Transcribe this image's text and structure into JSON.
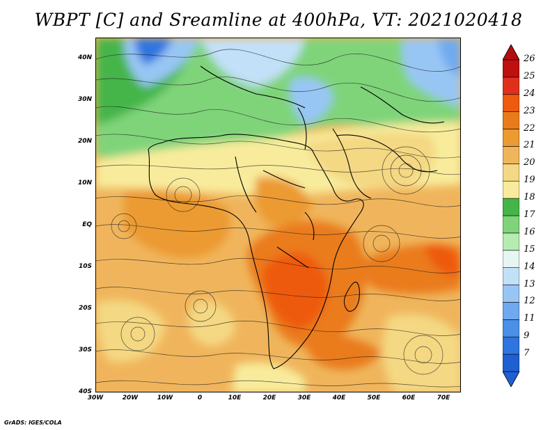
{
  "title": "WBPT [C] and Sreamline at 400hPa, VT: 2021020418",
  "credit": "GrADS: IGES/COLA",
  "map": {
    "lat_labels": [
      "40N",
      "30N",
      "20N",
      "10N",
      "EQ",
      "10S",
      "20S",
      "30S",
      "40S"
    ],
    "lat_values": [
      40,
      30,
      20,
      10,
      0,
      -10,
      -20,
      -30,
      -40
    ],
    "lon_labels": [
      "30W",
      "20W",
      "10W",
      "0",
      "10E",
      "20E",
      "30E",
      "40E",
      "50E",
      "60E",
      "70E"
    ],
    "lon_values": [
      -30,
      -20,
      -10,
      0,
      10,
      20,
      30,
      40,
      50,
      60,
      70
    ],
    "extent": {
      "lon_min": -30,
      "lon_max": 75,
      "lat_min": -40,
      "lat_max": 45
    }
  },
  "colorbar": {
    "labels": [
      "7",
      "9",
      "11",
      "12",
      "13",
      "14",
      "15",
      "16",
      "17",
      "18",
      "19",
      "20",
      "21",
      "22",
      "23",
      "24",
      "25",
      "26"
    ],
    "colors": [
      "#1f5fd1",
      "#2f74e0",
      "#4a8fe8",
      "#6faaf0",
      "#98c6f4",
      "#c2e0f8",
      "#e6f6f2",
      "#b7ecb0",
      "#7fd47a",
      "#44b548",
      "#f8ec9c",
      "#f4d883",
      "#f0b55c",
      "#ec9a32",
      "#ea7b1a",
      "#ee5a10",
      "#e0301c",
      "#c00f0f"
    ],
    "arrow_low": "#1f5fd1",
    "arrow_high": "#b40d0d"
  }
}
